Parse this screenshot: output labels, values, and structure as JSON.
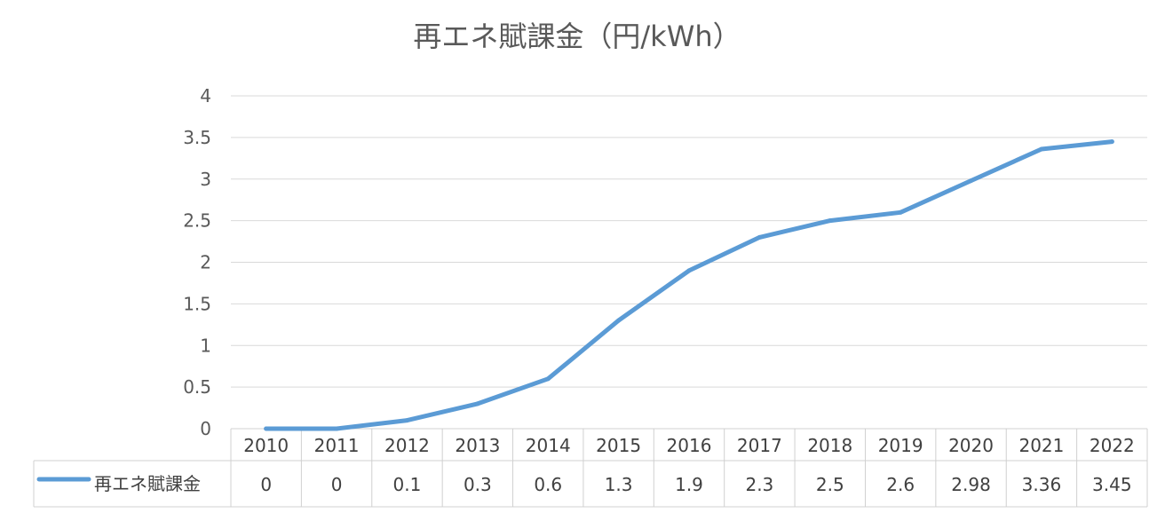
{
  "chart_data": {
    "type": "line",
    "title": "再エネ賦課金（円/kWh）",
    "categories": [
      "2010",
      "2011",
      "2012",
      "2013",
      "2014",
      "2015",
      "2016",
      "2017",
      "2018",
      "2019",
      "2020",
      "2021",
      "2022"
    ],
    "series": [
      {
        "name": "再エネ賦課金",
        "values": [
          0,
          0,
          0.1,
          0.3,
          0.6,
          1.3,
          1.9,
          2.3,
          2.5,
          2.6,
          2.98,
          3.36,
          3.45
        ],
        "labels": [
          "0",
          "0",
          "0.1",
          "0.3",
          "0.6",
          "1.3",
          "1.9",
          "2.3",
          "2.5",
          "2.6",
          "2.98",
          "3.36",
          "3.45"
        ],
        "color": "#5B9BD5"
      }
    ],
    "y_ticks": [
      "0",
      "0.5",
      "1",
      "1.5",
      "2",
      "2.5",
      "3",
      "3.5",
      "4"
    ],
    "ylim": [
      0,
      4
    ],
    "grid": true,
    "data_table": true
  }
}
